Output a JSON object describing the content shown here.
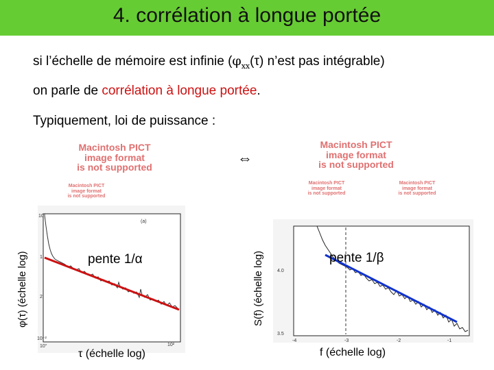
{
  "header": {
    "title": "4. corrélation à longue portée"
  },
  "body": {
    "line1_a": "si l’échelle de mémoire est infinie (",
    "line1_phi": "φ",
    "line1_sub": "xx",
    "line1_b": "(τ) n’est pas intégrable)",
    "line2_a": "on parle de ",
    "line2_red": "corrélation à longue portée",
    "line2_b": ".",
    "line3": "Typiquement, loi de puissance  :",
    "equiv": "⇔"
  },
  "placeholders": {
    "big": "Macintosh PICT\nimage format\nis not supported",
    "small": "Macintosh PICT\nimage format\nis not supported"
  },
  "left_plot": {
    "ylabel": "φ(τ) (échelle log)",
    "xlabel": "τ  (échelle log)",
    "slope_label": "pente 1/α",
    "panel_tag": "(a)",
    "ticks": {
      "y_top": "10°",
      "y_mid": "1",
      "y_low": "2",
      "y_bottom": "10⁻²",
      "x_left": "10°",
      "x_right": "10²"
    },
    "fit_color": "#cc1111"
  },
  "right_plot": {
    "ylabel": "S(f) (échelle log)",
    "xlabel": "f (échelle log)",
    "slope_label": "pente 1/β",
    "ticks": {
      "y_top": "4.0",
      "y_bottom": "3.5",
      "x1": "-4",
      "x2": "-3",
      "x3": "-2",
      "x4": "-1"
    },
    "fit_color": "#1133cc"
  }
}
